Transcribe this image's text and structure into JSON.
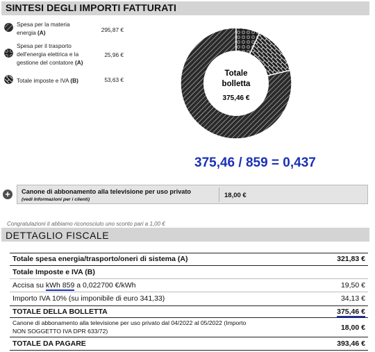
{
  "sintesi": {
    "title": "SINTESI DEGLI IMPORTI FATTURATI",
    "legend": [
      {
        "text_line1": "Spesa per la materia",
        "text_line2": "energia ",
        "tag": "(A)",
        "value": "295,87 €",
        "pattern": "diag-lines"
      },
      {
        "text_line1": "Spesa per il trasporto",
        "text_line2": "dell'energia elettrica e la",
        "text_line3": "gestione del contatore ",
        "tag": "(A)",
        "value": "25,96 €",
        "pattern": "circles"
      },
      {
        "text_line1": "Totale imposte e IVA ",
        "tag": "(B)",
        "value": "53,63 €",
        "pattern": "bricks"
      }
    ],
    "donut": {
      "center_line1": "Totale",
      "center_line2": "bolletta",
      "center_value": "375,46 €"
    }
  },
  "chart_data": {
    "type": "pie",
    "categories": [
      "Spesa per la materia energia (A)",
      "Spesa per il trasporto dell'energia elettrica e la gestione del contatore (A)",
      "Totale imposte e IVA (B)"
    ],
    "values": [
      295.87,
      25.96,
      53.63
    ],
    "total": 375.46
  },
  "formula": "375,46 / 859 = 0,437",
  "canone": {
    "title": "Canone di abbonamento alla televisione per uso privato",
    "subtitle": "(vedi Informazioni per i clienti)",
    "value": "18,00 €",
    "plus": "+"
  },
  "discount_note": "Congratulazioni ti abbiamo riconosciuto uno sconto pari a 1,00 €",
  "dettaglio": {
    "title": "DETTAGLIO FISCALE",
    "row_spesa_label": "Totale spesa energia/trasporto/oneri di sistema (A)",
    "row_spesa_value": "321,83 €",
    "row_imposte_label": "Totale Imposte e IVA (B)",
    "accisa_prefix": "Accisa su ",
    "accisa_kwh": "kWh 859",
    "accisa_suffix": " a 0,022700 €/kWh",
    "accisa_value": "19,50 €",
    "iva_label": "Importo IVA 10% (su imponibile di euro 341,33)",
    "iva_value": "34,13 €",
    "totale_bolletta_label": "TOTALE DELLA BOLLETTA",
    "totale_bolletta_value": "375,46 €",
    "canone_line1": "Canone di abbonamento alla televisione per uso privato dal 04/2022 al 05/2022 (Importo",
    "canone_line2": "NON SOGGETTO IVA DPR 633/72)",
    "canone_value": "18,00 €",
    "totale_pagare_label": "TOTALE DA PAGARE",
    "totale_pagare_value": "393,46 €"
  }
}
